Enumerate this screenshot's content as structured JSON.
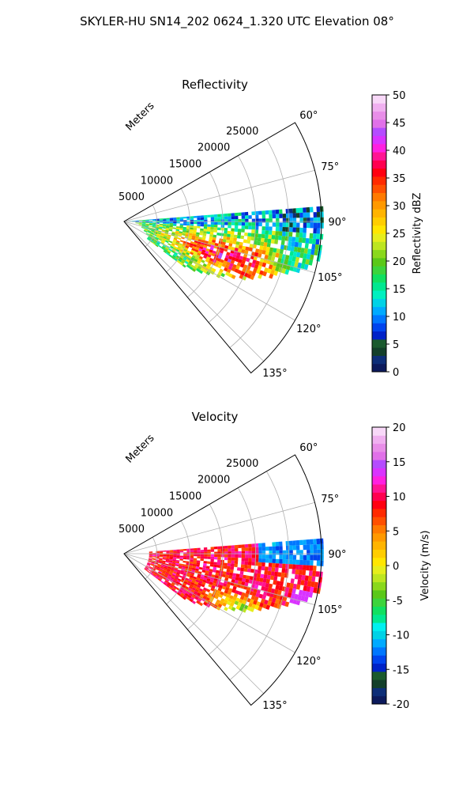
{
  "figure": {
    "suptitle": "SKYLER-HU  SN14_202  0624_1.320 UTC Elevation 08°"
  },
  "chart_data": [
    {
      "type": "heatmap",
      "title": "Reflectivity",
      "range_label": "Meters",
      "range_ticks": [
        5000,
        10000,
        15000,
        20000,
        25000
      ],
      "range_max": 30000,
      "azimuth_range_deg": [
        60,
        140
      ],
      "azimuth_ticks": [
        "60°",
        "75°",
        "90°",
        "105°",
        "120°",
        "135°"
      ],
      "grid": true,
      "colorbar": {
        "label": "Reflectivity dBZ",
        "min": 0,
        "max": 50,
        "ticks": [
          0,
          5,
          10,
          15,
          20,
          25,
          30,
          35,
          40,
          45,
          50
        ],
        "colors": [
          "#0c1a5c",
          "#0d2e78",
          "#133f2a",
          "#1b5a2e",
          "#0022c8",
          "#0044ee",
          "#0077ff",
          "#00aaff",
          "#00d2e6",
          "#00f0c0",
          "#00e890",
          "#10e060",
          "#3cd43c",
          "#5ac818",
          "#8ad81c",
          "#bde620",
          "#e6ee1c",
          "#ffe600",
          "#ffcd00",
          "#ffb400",
          "#ff9900",
          "#ff7a00",
          "#ff5000",
          "#ff2a00",
          "#ff0010",
          "#ff0050",
          "#ff1493",
          "#ff20e0",
          "#d933ff",
          "#b44cff",
          "#e070e8",
          "#e88ee8",
          "#f0b0f0",
          "#f8d8f8"
        ]
      }
    },
    {
      "type": "heatmap",
      "title": "Velocity",
      "range_label": "Meters",
      "range_ticks": [
        5000,
        10000,
        15000,
        20000,
        25000
      ],
      "range_max": 30000,
      "azimuth_range_deg": [
        60,
        140
      ],
      "azimuth_ticks": [
        "60°",
        "75°",
        "90°",
        "105°",
        "120°",
        "135°"
      ],
      "grid": true,
      "colorbar": {
        "label": "Velocity (m/s)",
        "min": -20,
        "max": 20,
        "ticks": [
          -20,
          -15,
          -10,
          -5,
          0,
          5,
          10,
          15,
          20
        ],
        "colors": [
          "#0c1a5c",
          "#0d2e78",
          "#133f2a",
          "#1b5a2e",
          "#0022c8",
          "#0044ee",
          "#0077ff",
          "#00aaff",
          "#00d2e6",
          "#00f0f0",
          "#00e890",
          "#10e060",
          "#3cd43c",
          "#5ac818",
          "#8ad81c",
          "#bde620",
          "#e6ee1c",
          "#ffe600",
          "#ffcd00",
          "#ffb400",
          "#ff9900",
          "#ff7a00",
          "#ff5000",
          "#ff2a00",
          "#ff0010",
          "#ff0050",
          "#ff1493",
          "#ff20e0",
          "#d933ff",
          "#b44cff",
          "#e070e8",
          "#e88ee8",
          "#f0b0f0",
          "#f8d8f8"
        ]
      }
    }
  ]
}
